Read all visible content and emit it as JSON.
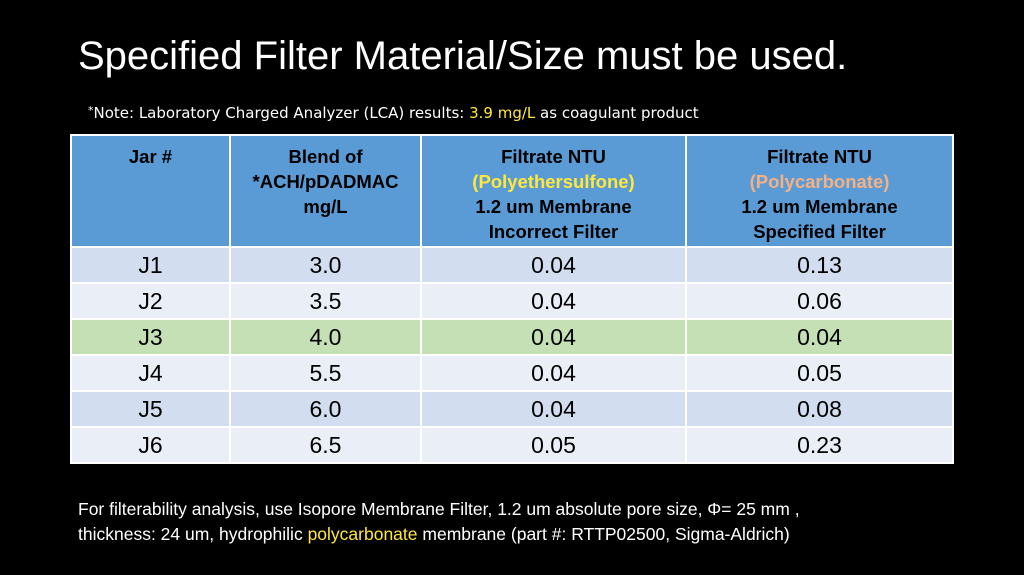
{
  "title": "Specified Filter Material/Size must be used.",
  "note": {
    "star": "*",
    "prefix": "Note: Laboratory Charged Analyzer (LCA) results: ",
    "value": "3.9 mg/L",
    "suffix": " as coagulant product"
  },
  "table": {
    "headers": {
      "jar": "Jar #",
      "blend_line1": "Blend of",
      "blend_line2": "*ACH/pDADMAC",
      "blend_line3": "mg/L",
      "pes_line1": "Filtrate NTU",
      "pes_material": "(Polyethersulfone)",
      "pes_line3": "1.2 um Membrane",
      "pes_line4": "Incorrect Filter",
      "pc_line1": "Filtrate NTU",
      "pc_material": "(Polycarbonate)",
      "pc_line3": "1.2 um Membrane",
      "pc_line4": "Specified Filter"
    },
    "rows": [
      {
        "jar": "J1",
        "blend": "3.0",
        "pes": "0.04",
        "pc": "0.13"
      },
      {
        "jar": "J2",
        "blend": "3.5",
        "pes": "0.04",
        "pc": "0.06"
      },
      {
        "jar": "J3",
        "blend": "4.0",
        "pes": "0.04",
        "pc": "0.04"
      },
      {
        "jar": "J4",
        "blend": "5.5",
        "pes": "0.04",
        "pc": "0.05"
      },
      {
        "jar": "J5",
        "blend": "6.0",
        "pes": "0.04",
        "pc": "0.08"
      },
      {
        "jar": "J6",
        "blend": "6.5",
        "pes": "0.05",
        "pc": "0.23"
      }
    ],
    "highlighted_row": "J3"
  },
  "footer": {
    "line1": "For filterability analysis, use Isopore Membrane Filter, 1.2 um absolute pore size, Φ= 25 mm ,",
    "line2_prefix": "thickness: 24 um, hydrophilic ",
    "line2_highlight": "polycarbonate",
    "line2_suffix": " membrane (part #: RTTP02500, Sigma-Aldrich)"
  },
  "colors": {
    "background": "#000000",
    "header_fill": "#5b9bd5",
    "row_dark": "#d2deef",
    "row_light": "#eaeff7",
    "row_highlight": "#c5e0b4",
    "yellow_accent": "#ffe83a",
    "peach_accent": "#f4b183"
  }
}
